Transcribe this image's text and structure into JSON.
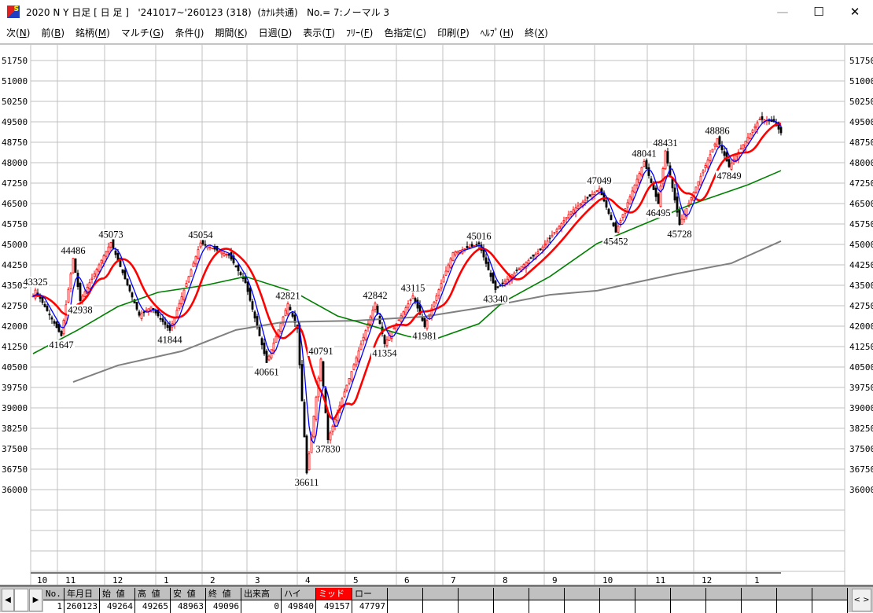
{
  "window": {
    "title": "2020 N Y 日足 [ 日 足 ]   '241017~'260123 (318)  (ｶﾅﾙ共通)   No.= 7:ノーマル 3",
    "app_icon_letter": "S",
    "minimize": "—",
    "maximize": "☐",
    "close": "✕"
  },
  "menu": [
    {
      "label": "次",
      "key": "N"
    },
    {
      "label": "前",
      "key": "B"
    },
    {
      "label": "銘柄",
      "key": "M"
    },
    {
      "label": "マルチ",
      "key": "G"
    },
    {
      "label": "条件",
      "key": "J"
    },
    {
      "label": "期間",
      "key": "K"
    },
    {
      "label": "日週",
      "key": "D"
    },
    {
      "label": "表示",
      "key": "T"
    },
    {
      "label": "ﾌﾘｰ",
      "key": "F"
    },
    {
      "label": "色指定",
      "key": "C"
    },
    {
      "label": "印刷",
      "key": "P"
    },
    {
      "label": "ﾍﾙﾌﾟ",
      "key": "H"
    },
    {
      "label": "終",
      "key": "X"
    }
  ],
  "chart_data": {
    "type": "candlestick",
    "bars": 318,
    "ylim": [
      35250,
      52500
    ],
    "y_ticks": [
      "51750",
      "51000",
      "50250",
      "49500",
      "48750",
      "48000",
      "47250",
      "46500",
      "45750",
      "45000",
      "44250",
      "43500",
      "42750",
      "42000",
      "41250",
      "40500",
      "39750",
      "39000",
      "38250",
      "37500",
      "36750",
      "36000"
    ],
    "x_ticks": [
      "10",
      "11",
      "12",
      "1",
      "2",
      "3",
      "4",
      "5",
      "6",
      "7",
      "8",
      "9",
      "10",
      "11",
      "12",
      "1"
    ],
    "grid": true,
    "colors": {
      "up": "#ff0000",
      "down": "#000000",
      "ma_short": "#0000ff",
      "ma_mid": "#ff0000",
      "ma_long": "#008000",
      "ma_longest": "#808080",
      "grid": "#c0c0c0"
    },
    "price_path": [
      [
        0,
        43100
      ],
      [
        1,
        43325
      ],
      [
        12,
        41647
      ],
      [
        17,
        44486
      ],
      [
        20,
        42938
      ],
      [
        33,
        45073
      ],
      [
        45,
        42400
      ],
      [
        50,
        42700
      ],
      [
        58,
        41844
      ],
      [
        71,
        45054
      ],
      [
        83,
        44600
      ],
      [
        90,
        43600
      ],
      [
        99,
        40661
      ],
      [
        108,
        42821
      ],
      [
        112,
        41900
      ],
      [
        116,
        36611
      ],
      [
        122,
        40791
      ],
      [
        125,
        37830
      ],
      [
        145,
        42842
      ],
      [
        149,
        41354
      ],
      [
        161,
        43115
      ],
      [
        166,
        41981
      ],
      [
        178,
        44700
      ],
      [
        189,
        45016
      ],
      [
        196,
        43340
      ],
      [
        215,
        44800
      ],
      [
        228,
        46200
      ],
      [
        240,
        47049
      ],
      [
        247,
        45452
      ],
      [
        259,
        48041
      ],
      [
        265,
        46495
      ],
      [
        268,
        48431
      ],
      [
        274,
        45728
      ],
      [
        290,
        48886
      ],
      [
        295,
        47849
      ],
      [
        308,
        49600
      ],
      [
        314,
        49500
      ],
      [
        317,
        49096
      ]
    ],
    "ma_long_path": [
      [
        0,
        40990
      ],
      [
        19,
        41860
      ],
      [
        36,
        42720
      ],
      [
        53,
        43240
      ],
      [
        73,
        43500
      ],
      [
        90,
        43820
      ],
      [
        111,
        43240
      ],
      [
        129,
        42375
      ],
      [
        159,
        41625
      ],
      [
        169,
        41480
      ],
      [
        189,
        42090
      ],
      [
        199,
        42870
      ],
      [
        219,
        43820
      ],
      [
        239,
        45030
      ],
      [
        259,
        45750
      ],
      [
        279,
        46470
      ],
      [
        303,
        47190
      ],
      [
        317,
        47710
      ]
    ],
    "ma_longest_path": [
      [
        17,
        39950
      ],
      [
        36,
        40560
      ],
      [
        63,
        41080
      ],
      [
        86,
        41860
      ],
      [
        106,
        42150
      ],
      [
        136,
        42200
      ],
      [
        166,
        42350
      ],
      [
        193,
        42720
      ],
      [
        219,
        43150
      ],
      [
        239,
        43300
      ],
      [
        273,
        43930
      ],
      [
        296,
        44310
      ],
      [
        317,
        45120
      ]
    ],
    "annotations": [
      {
        "bar": 1,
        "value": "43325",
        "pos": "above"
      },
      {
        "bar": 12,
        "value": "41647",
        "pos": "below"
      },
      {
        "bar": 17,
        "value": "44486",
        "pos": "above"
      },
      {
        "bar": 20,
        "value": "42938",
        "pos": "below"
      },
      {
        "bar": 33,
        "value": "45073",
        "pos": "above"
      },
      {
        "bar": 58,
        "value": "41844",
        "pos": "below"
      },
      {
        "bar": 71,
        "value": "45054",
        "pos": "above"
      },
      {
        "bar": 99,
        "value": "40661",
        "pos": "below"
      },
      {
        "bar": 108,
        "value": "42821",
        "pos": "above"
      },
      {
        "bar": 116,
        "value": "36611",
        "pos": "below"
      },
      {
        "bar": 122,
        "value": "40791",
        "pos": "above"
      },
      {
        "bar": 125,
        "value": "37830",
        "pos": "below"
      },
      {
        "bar": 145,
        "value": "42842",
        "pos": "above"
      },
      {
        "bar": 149,
        "value": "41354",
        "pos": "below"
      },
      {
        "bar": 161,
        "value": "43115",
        "pos": "above"
      },
      {
        "bar": 166,
        "value": "41981",
        "pos": "below"
      },
      {
        "bar": 189,
        "value": "45016",
        "pos": "above"
      },
      {
        "bar": 196,
        "value": "43340",
        "pos": "below"
      },
      {
        "bar": 240,
        "value": "47049",
        "pos": "above"
      },
      {
        "bar": 247,
        "value": "45452",
        "pos": "below"
      },
      {
        "bar": 259,
        "value": "48041",
        "pos": "above"
      },
      {
        "bar": 265,
        "value": "46495",
        "pos": "below"
      },
      {
        "bar": 268,
        "value": "48431",
        "pos": "above"
      },
      {
        "bar": 274,
        "value": "45728",
        "pos": "below"
      },
      {
        "bar": 290,
        "value": "48886",
        "pos": "above"
      },
      {
        "bar": 295,
        "value": "47849",
        "pos": "below"
      }
    ]
  },
  "table": {
    "headers": [
      "No.",
      "年月日",
      "始 値",
      "高 値",
      "安 値",
      "終 値",
      "出来高",
      "ハイ",
      "ミッド",
      "ロー"
    ],
    "values": [
      "1",
      "260123",
      "49264",
      "49265",
      "48963",
      "49096",
      "0",
      "49840",
      "49157",
      "47797"
    ],
    "highlight_color": "#ff0000",
    "nav_left": "◀",
    "nav_right": "▶",
    "scroll_prev": "<",
    "scroll_next": ">"
  }
}
